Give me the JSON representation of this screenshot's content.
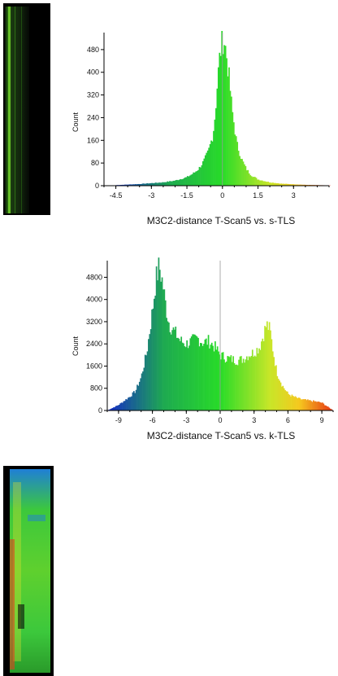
{
  "chart_data": [
    {
      "type": "bar",
      "xlabel": "M3C2-distance T-Scan5 vs. s-TLS",
      "ylabel": "Count",
      "xlim": [
        -5,
        4.5
      ],
      "ylim": [
        0,
        540
      ],
      "x_ticks": [
        -4.5,
        -3,
        -1.5,
        0,
        1.5,
        3
      ],
      "x_tick_labels": [
        "-4.5",
        "-3",
        "-1.5",
        "0",
        "1.5",
        "3"
      ],
      "y_ticks": [
        0,
        80,
        160,
        240,
        320,
        400,
        480
      ],
      "y_tick_labels": [
        "0",
        "80",
        "160",
        "240",
        "320",
        "400",
        "480"
      ],
      "bin_width": 0.05,
      "x": [
        -4.5,
        -4.0,
        -3.5,
        -3.0,
        -2.5,
        -2.0,
        -1.5,
        -1.2,
        -1.0,
        -0.8,
        -0.6,
        -0.4,
        -0.3,
        -0.2,
        -0.1,
        0.0,
        0.05,
        0.1,
        0.2,
        0.3,
        0.4,
        0.5,
        0.6,
        0.8,
        1.0,
        1.2,
        1.5,
        2.0,
        2.5,
        3.0,
        3.5,
        4.0,
        4.5
      ],
      "values": [
        2,
        4,
        6,
        9,
        12,
        18,
        30,
        45,
        60,
        85,
        120,
        180,
        260,
        380,
        470,
        510,
        520,
        500,
        440,
        360,
        270,
        210,
        150,
        95,
        60,
        38,
        22,
        12,
        7,
        5,
        3,
        2,
        1
      ],
      "grid": false,
      "colormap": "blue-green-yellow-red"
    },
    {
      "type": "bar",
      "xlabel": "M3C2-distance T-Scan5 vs. k-TLS",
      "ylabel": "Count",
      "xlim": [
        -10,
        10
      ],
      "ylim": [
        0,
        5400
      ],
      "x_ticks": [
        -9,
        -6,
        -3,
        0,
        3,
        6,
        9
      ],
      "x_tick_labels": [
        "-9",
        "-6",
        "-3",
        "0",
        "3",
        "6",
        "9"
      ],
      "y_ticks": [
        0,
        800,
        1600,
        2400,
        3200,
        4000,
        4800
      ],
      "y_tick_labels": [
        "0",
        "800",
        "1600",
        "2400",
        "3200",
        "4000",
        "4800"
      ],
      "bin_width": 0.1,
      "x": [
        -10,
        -9,
        -8.5,
        -8,
        -7.5,
        -7,
        -6.5,
        -6,
        -5.7,
        -5.4,
        -5.1,
        -4.8,
        -4.5,
        -4,
        -3.5,
        -3,
        -2.5,
        -2,
        -1.5,
        -1,
        -0.5,
        0,
        0.5,
        1,
        1.5,
        2,
        2.5,
        3,
        3.5,
        3.8,
        4.1,
        4.4,
        4.7,
        5,
        5.5,
        6,
        6.5,
        7,
        7.5,
        8,
        8.5,
        9,
        10
      ],
      "values": [
        0,
        200,
        350,
        500,
        700,
        1200,
        2100,
        3600,
        4700,
        5200,
        4600,
        3700,
        3100,
        2800,
        2500,
        2400,
        2500,
        2600,
        2450,
        2500,
        2300,
        2000,
        1900,
        1850,
        1800,
        1850,
        2000,
        2100,
        2300,
        2700,
        3100,
        2900,
        2100,
        1400,
        900,
        600,
        500,
        420,
        380,
        350,
        320,
        280,
        0
      ],
      "grid": false,
      "colormap": "blue-green-yellow-red"
    }
  ],
  "thumbnails": {
    "top_colors": [
      "#0b1a0b",
      "#3a8a1a",
      "#6ec82a"
    ],
    "bottom_colors": [
      "#1f7fd6",
      "#3cc83c",
      "#e0e030",
      "#e04020"
    ]
  }
}
